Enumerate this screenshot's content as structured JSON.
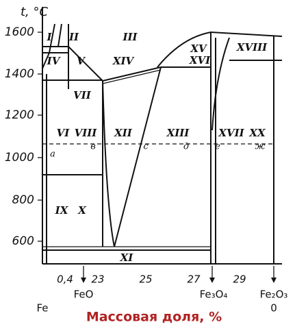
{
  "y_axis": {
    "label": "t, °C",
    "ticks": [
      "1600",
      "1400",
      "1200",
      "1000",
      "800",
      "600"
    ]
  },
  "x_axis": {
    "ticks": [
      "0,4",
      "23",
      "25",
      "27",
      "29"
    ],
    "components": [
      "Fe",
      "FeO",
      "Fe₃O₄",
      "Fe₂O₃",
      "0"
    ],
    "title": "Массовая доля, %"
  },
  "regions": [
    "I",
    "II",
    "III",
    "IV",
    "V",
    "XIV",
    "XV",
    "XVI",
    "XVIII",
    "VII",
    "VI",
    "VIII",
    "XII",
    "XIII",
    "XVII",
    "XX",
    "IX",
    "X",
    "XI"
  ],
  "points": [
    "а",
    "в",
    "с",
    "д",
    "е",
    "ж"
  ]
}
